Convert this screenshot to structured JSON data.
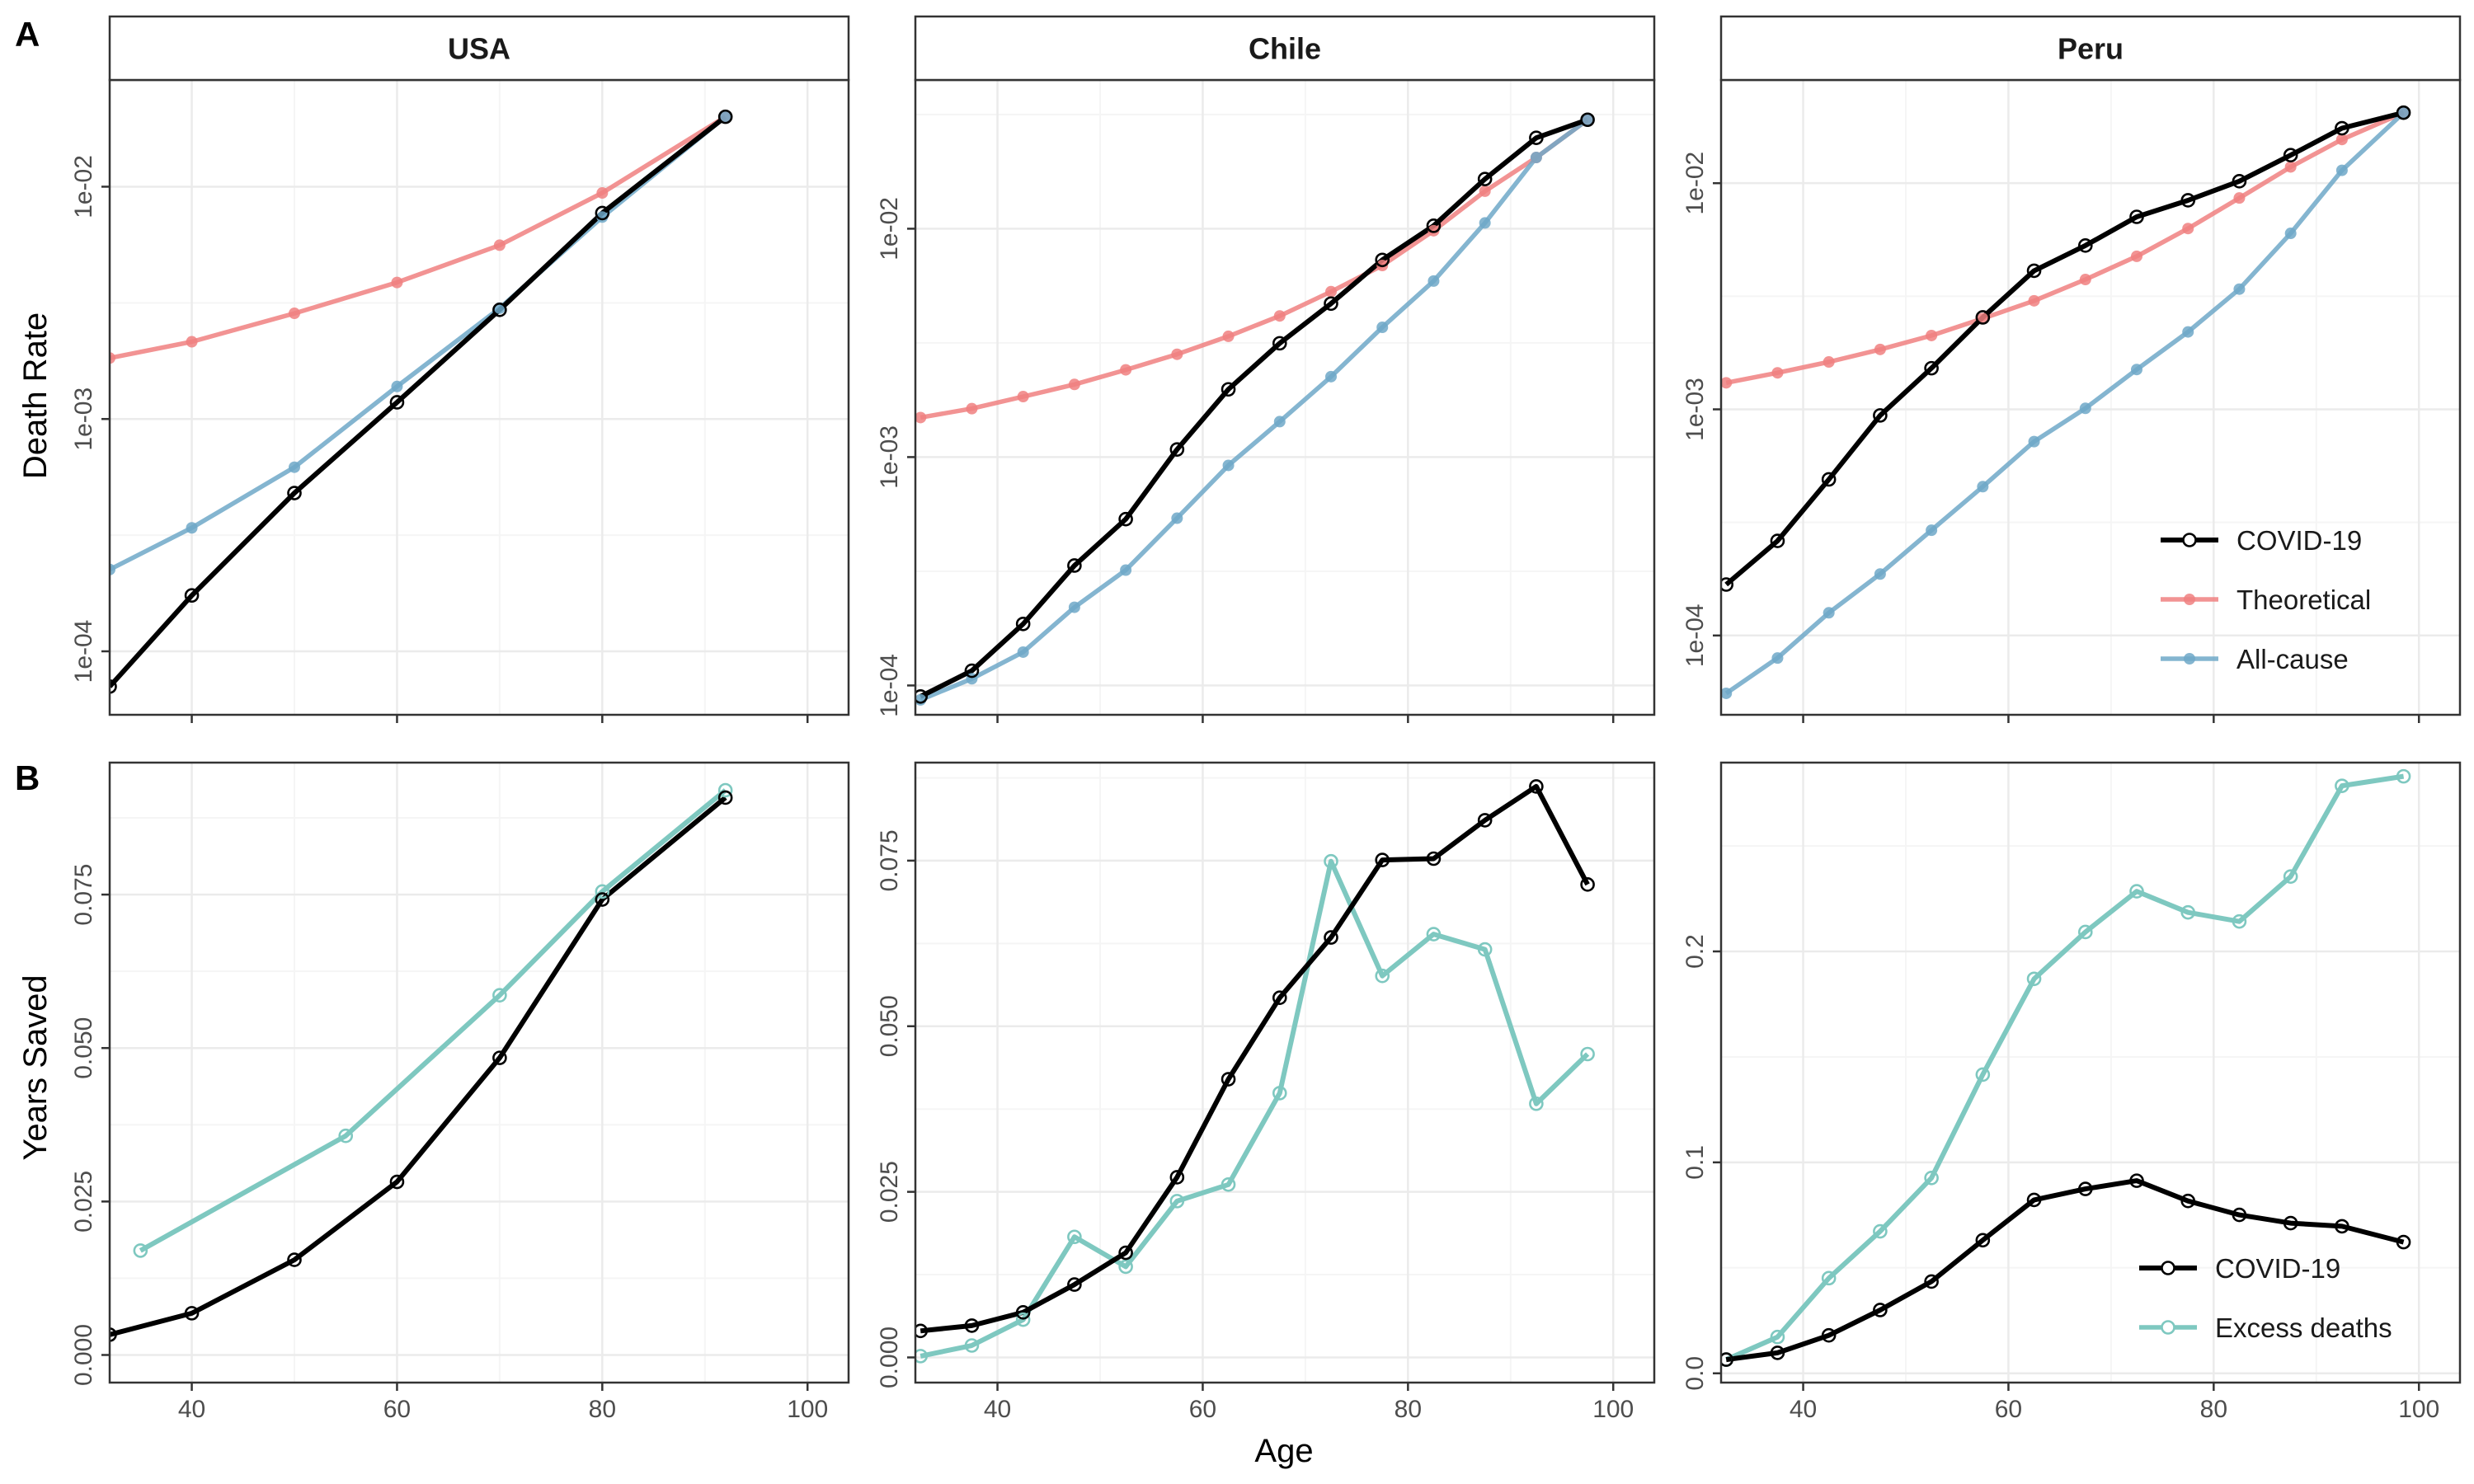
{
  "figure": {
    "row_tags": [
      "A",
      "B"
    ],
    "x_axis_title": "Age",
    "y_axis_titles": [
      "Death Rate",
      "Years Saved"
    ]
  },
  "colors": {
    "covid": "#000000",
    "theoretical": "#f08080",
    "allcause": "#6fa8c8",
    "excess": "#7ec8c0",
    "grid_major": "#ebebeb",
    "grid_minor": "#f5f5f5",
    "strip_fill": "#ffffff",
    "panel_border": "#333333"
  },
  "legends": {
    "A": [
      "COVID-19",
      "Theoretical",
      "All-cause"
    ],
    "B": [
      "COVID-19",
      "Excess deaths"
    ]
  },
  "chart_data": [
    {
      "type": "line",
      "row": "A",
      "strip": "USA",
      "ylabel": "Death Rate",
      "y_scale": "log10",
      "xlim": [
        32,
        104
      ],
      "ylim": [
        5.33e-05,
        0.0288
      ],
      "x_ticks": [
        40,
        60,
        80,
        100
      ],
      "y_ticks": [
        {
          "value": 0.0001,
          "label": "1e-04"
        },
        {
          "value": 0.001,
          "label": "1e-03"
        },
        {
          "value": 0.01,
          "label": "1e-02"
        }
      ],
      "series": [
        {
          "name": "COVID-19",
          "key": "covid",
          "marker": "open",
          "points": [
            [
              32,
              7.05e-05
            ],
            [
              40,
              0.000174
            ],
            [
              50,
              0.00048
            ],
            [
              60,
              0.00118
            ],
            [
              70,
              0.00295
            ],
            [
              80,
              0.0077
            ],
            [
              92,
              0.02
            ]
          ]
        },
        {
          "name": "Theoretical",
          "key": "theoretical",
          "marker": "filled",
          "points": [
            [
              32,
              0.00183
            ],
            [
              40,
              0.00215
            ],
            [
              50,
              0.00285
            ],
            [
              60,
              0.00387
            ],
            [
              70,
              0.0056
            ],
            [
              80,
              0.0094
            ],
            [
              92,
              0.02
            ]
          ]
        },
        {
          "name": "All-cause",
          "key": "allcause",
          "marker": "filled",
          "points": [
            [
              32,
              0.000225
            ],
            [
              40,
              0.00034
            ],
            [
              50,
              0.00062
            ],
            [
              60,
              0.00138
            ],
            [
              70,
              0.003
            ],
            [
              80,
              0.0074
            ],
            [
              92,
              0.02
            ]
          ]
        }
      ]
    },
    {
      "type": "line",
      "row": "A",
      "strip": "Chile",
      "y_scale": "log10",
      "xlim": [
        32,
        104
      ],
      "ylim": [
        7.44e-05,
        0.0448
      ],
      "x_ticks": [
        40,
        60,
        80,
        100
      ],
      "y_ticks": [
        {
          "value": 0.0001,
          "label": "1e-04"
        },
        {
          "value": 0.001,
          "label": "1e-03"
        },
        {
          "value": 0.01,
          "label": "1e-02"
        }
      ],
      "series": [
        {
          "name": "COVID-19",
          "key": "covid",
          "marker": "open",
          "points": [
            [
              32.5,
              8.95e-05
            ],
            [
              37.5,
              0.000116
            ],
            [
              42.5,
              0.000186
            ],
            [
              47.5,
              0.000335
            ],
            [
              52.5,
              0.000535
            ],
            [
              57.5,
              0.00108
            ],
            [
              62.5,
              0.00198
            ],
            [
              67.5,
              0.00315
            ],
            [
              72.5,
              0.0047
            ],
            [
              77.5,
              0.0073
            ],
            [
              82.5,
              0.0103
            ],
            [
              87.5,
              0.0165
            ],
            [
              92.5,
              0.025
            ],
            [
              97.5,
              0.03
            ]
          ]
        },
        {
          "name": "Theoretical",
          "key": "theoretical",
          "marker": "filled",
          "points": [
            [
              32.5,
              0.00149
            ],
            [
              37.5,
              0.00163
            ],
            [
              42.5,
              0.00184
            ],
            [
              47.5,
              0.00208
            ],
            [
              52.5,
              0.00241
            ],
            [
              57.5,
              0.00282
            ],
            [
              62.5,
              0.00338
            ],
            [
              67.5,
              0.00415
            ],
            [
              72.5,
              0.0053
            ],
            [
              77.5,
              0.0069
            ],
            [
              82.5,
              0.0098
            ],
            [
              87.5,
              0.0146
            ],
            [
              92.5,
              0.0205
            ],
            [
              97.5,
              0.03
            ]
          ]
        },
        {
          "name": "All-cause",
          "key": "allcause",
          "marker": "filled",
          "points": [
            [
              32.5,
              8.65e-05
            ],
            [
              37.5,
              0.000107
            ],
            [
              42.5,
              0.00014
            ],
            [
              47.5,
              0.00022
            ],
            [
              52.5,
              0.00032
            ],
            [
              57.5,
              0.00054
            ],
            [
              62.5,
              0.00092
            ],
            [
              67.5,
              0.00143
            ],
            [
              72.5,
              0.00225
            ],
            [
              77.5,
              0.0037
            ],
            [
              82.5,
              0.0059
            ],
            [
              87.5,
              0.0106
            ],
            [
              92.5,
              0.0205
            ],
            [
              97.5,
              0.03
            ]
          ]
        }
      ]
    },
    {
      "type": "line",
      "row": "A",
      "strip": "Peru",
      "y_scale": "log10",
      "xlim": [
        32,
        104
      ],
      "ylim": [
        4.46e-05,
        0.0286
      ],
      "x_ticks": [
        40,
        60,
        80,
        100
      ],
      "y_ticks": [
        {
          "value": 0.0001,
          "label": "1e-04"
        },
        {
          "value": 0.001,
          "label": "1e-03"
        },
        {
          "value": 0.01,
          "label": "1e-02"
        }
      ],
      "series": [
        {
          "name": "COVID-19",
          "key": "covid",
          "marker": "open",
          "points": [
            [
              32.5,
              0.000168
            ],
            [
              37.5,
              0.000262
            ],
            [
              42.5,
              0.00049
            ],
            [
              47.5,
              0.00094
            ],
            [
              52.5,
              0.00152
            ],
            [
              57.5,
              0.00255
            ],
            [
              62.5,
              0.0041
            ],
            [
              67.5,
              0.0053
            ],
            [
              72.5,
              0.0071
            ],
            [
              77.5,
              0.0084
            ],
            [
              82.5,
              0.0102
            ],
            [
              87.5,
              0.0133
            ],
            [
              92.5,
              0.0175
            ],
            [
              98.5,
              0.0205
            ]
          ]
        },
        {
          "name": "Theoretical",
          "key": "theoretical",
          "marker": "filled",
          "points": [
            [
              32.5,
              0.00131
            ],
            [
              37.5,
              0.00145
            ],
            [
              42.5,
              0.00162
            ],
            [
              47.5,
              0.00184
            ],
            [
              52.5,
              0.00212
            ],
            [
              57.5,
              0.00252
            ],
            [
              62.5,
              0.00302
            ],
            [
              67.5,
              0.00375
            ],
            [
              72.5,
              0.00475
            ],
            [
              77.5,
              0.0063
            ],
            [
              82.5,
              0.0086
            ],
            [
              87.5,
              0.0118
            ],
            [
              92.5,
              0.0156
            ],
            [
              98.5,
              0.0205
            ]
          ]
        },
        {
          "name": "All-cause",
          "key": "allcause",
          "marker": "filled",
          "points": [
            [
              32.5,
              5.55e-05
            ],
            [
              37.5,
              7.95e-05
            ],
            [
              42.5,
              0.000126
            ],
            [
              47.5,
              0.000187
            ],
            [
              52.5,
              0.000292
            ],
            [
              57.5,
              0.000455
            ],
            [
              62.5,
              0.00072
            ],
            [
              67.5,
              0.00101
            ],
            [
              72.5,
              0.0015
            ],
            [
              77.5,
              0.0022
            ],
            [
              82.5,
              0.0034
            ],
            [
              87.5,
              0.006
            ],
            [
              92.5,
              0.0114
            ],
            [
              98.5,
              0.0205
            ]
          ]
        }
      ]
    },
    {
      "type": "line",
      "row": "B",
      "strip": "USA",
      "ylabel": "Years Saved",
      "xlabel": "Age",
      "y_scale": "linear",
      "xlim": [
        32,
        104
      ],
      "ylim": [
        -0.0045,
        0.0965
      ],
      "x_ticks": [
        40,
        60,
        80,
        100
      ],
      "y_ticks": [
        {
          "value": 0,
          "label": "0.000"
        },
        {
          "value": 0.025,
          "label": "0.025"
        },
        {
          "value": 0.05,
          "label": "0.050"
        },
        {
          "value": 0.075,
          "label": "0.075"
        }
      ],
      "series": [
        {
          "name": "COVID-19",
          "key": "covid",
          "marker": "open",
          "points": [
            [
              32,
              0.0033
            ],
            [
              40,
              0.0068
            ],
            [
              50,
              0.0155
            ],
            [
              60,
              0.0282
            ],
            [
              70,
              0.0484
            ],
            [
              80,
              0.0742
            ],
            [
              92,
              0.0908
            ]
          ]
        },
        {
          "name": "Excess deaths",
          "key": "excess",
          "marker": "open",
          "points": [
            [
              35,
              0.017
            ],
            [
              55,
              0.0357
            ],
            [
              70,
              0.0586
            ],
            [
              80,
              0.0755
            ],
            [
              92,
              0.092
            ]
          ]
        }
      ]
    },
    {
      "type": "line",
      "row": "B",
      "strip": "Chile",
      "xlabel": "Age",
      "y_scale": "linear",
      "xlim": [
        32,
        104
      ],
      "ylim": [
        -0.0038,
        0.0898
      ],
      "x_ticks": [
        40,
        60,
        80,
        100
      ],
      "y_ticks": [
        {
          "value": 0,
          "label": "0.000"
        },
        {
          "value": 0.025,
          "label": "0.025"
        },
        {
          "value": 0.05,
          "label": "0.050"
        },
        {
          "value": 0.075,
          "label": "0.075"
        }
      ],
      "series": [
        {
          "name": "COVID-19",
          "key": "covid",
          "marker": "open",
          "points": [
            [
              32.5,
              0.004
            ],
            [
              37.5,
              0.0048
            ],
            [
              42.5,
              0.0068
            ],
            [
              47.5,
              0.011
            ],
            [
              52.5,
              0.0158
            ],
            [
              57.5,
              0.0272
            ],
            [
              62.5,
              0.042
            ],
            [
              67.5,
              0.0543
            ],
            [
              72.5,
              0.0634
            ],
            [
              77.5,
              0.0751
            ],
            [
              82.5,
              0.0753
            ],
            [
              87.5,
              0.0811
            ],
            [
              92.5,
              0.0862
            ],
            [
              97.5,
              0.0714
            ]
          ]
        },
        {
          "name": "Excess deaths",
          "key": "excess",
          "marker": "open",
          "points": [
            [
              32.5,
              0.0002
            ],
            [
              37.5,
              0.0018
            ],
            [
              42.5,
              0.0057
            ],
            [
              47.5,
              0.0182
            ],
            [
              52.5,
              0.0137
            ],
            [
              57.5,
              0.0236
            ],
            [
              62.5,
              0.0261
            ],
            [
              67.5,
              0.0399
            ],
            [
              72.5,
              0.0749
            ],
            [
              77.5,
              0.0576
            ],
            [
              82.5,
              0.0639
            ],
            [
              87.5,
              0.0616
            ],
            [
              92.5,
              0.0383
            ],
            [
              97.5,
              0.0458
            ]
          ]
        }
      ]
    },
    {
      "type": "line",
      "row": "B",
      "strip": "Peru",
      "xlabel": "Age",
      "y_scale": "linear",
      "xlim": [
        32,
        104
      ],
      "ylim": [
        -0.0044,
        0.2895
      ],
      "x_ticks": [
        40,
        60,
        80,
        100
      ],
      "y_ticks": [
        {
          "value": 0,
          "label": "0.0"
        },
        {
          "value": 0.1,
          "label": "0.1"
        },
        {
          "value": 0.2,
          "label": "0.2"
        }
      ],
      "series": [
        {
          "name": "COVID-19",
          "key": "covid",
          "marker": "open",
          "points": [
            [
              32.5,
              0.0065
            ],
            [
              37.5,
              0.0097
            ],
            [
              42.5,
              0.018
            ],
            [
              47.5,
              0.03
            ],
            [
              52.5,
              0.0435
            ],
            [
              57.5,
              0.0631
            ],
            [
              62.5,
              0.0822
            ],
            [
              67.5,
              0.0874
            ],
            [
              72.5,
              0.0913
            ],
            [
              77.5,
              0.0817
            ],
            [
              82.5,
              0.0751
            ],
            [
              87.5,
              0.0712
            ],
            [
              92.5,
              0.0697
            ],
            [
              98.5,
              0.0622
            ]
          ]
        },
        {
          "name": "Excess deaths",
          "key": "excess",
          "marker": "open",
          "points": [
            [
              32.5,
              0.0065
            ],
            [
              37.5,
              0.0172
            ],
            [
              42.5,
              0.0451
            ],
            [
              47.5,
              0.0673
            ],
            [
              52.5,
              0.0926
            ],
            [
              57.5,
              0.1416
            ],
            [
              62.5,
              0.187
            ],
            [
              67.5,
              0.2092
            ],
            [
              72.5,
              0.2285
            ],
            [
              77.5,
              0.2185
            ],
            [
              82.5,
              0.2142
            ],
            [
              87.5,
              0.2355
            ],
            [
              92.5,
              0.2785
            ],
            [
              98.5,
              0.283
            ]
          ]
        }
      ]
    }
  ]
}
